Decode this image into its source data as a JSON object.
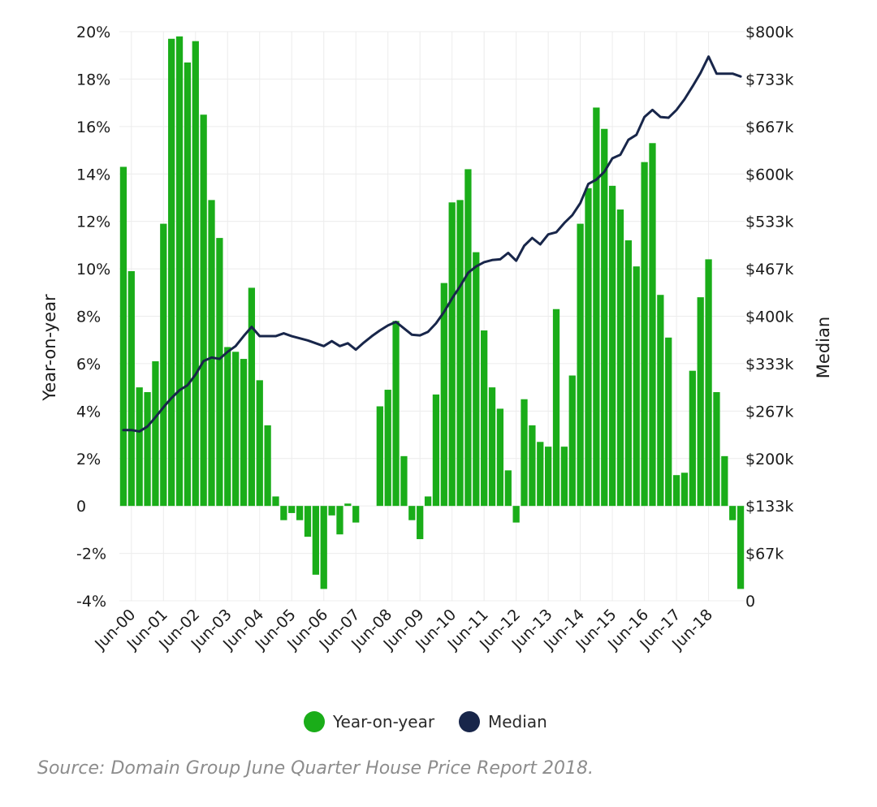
{
  "source_note": "Source: Domain Group June Quarter House Price Report 2018.",
  "colors": {
    "bars": "#1aad19",
    "median_line": "#18264a",
    "grid": "#ececec"
  },
  "chart_data": {
    "type": "bar",
    "ylabel_left": "Year-on-year",
    "ylabel_right": "Median",
    "ylim_left": [
      -4,
      20
    ],
    "ylim_right": [
      0,
      800000
    ],
    "left_ticks": [
      "-4%",
      "-2%",
      "0",
      "2%",
      "4%",
      "6%",
      "8%",
      "10%",
      "12%",
      "14%",
      "16%",
      "18%",
      "20%"
    ],
    "right_ticks": [
      "0",
      "$67k",
      "$133k",
      "$200k",
      "$267k",
      "$333k",
      "$400k",
      "$467k",
      "$533k",
      "$600k",
      "$667k",
      "$733k",
      "$800k"
    ],
    "x_tick_labels": [
      "Jun-00",
      "Jun-01",
      "Jun-02",
      "Jun-03",
      "Jun-04",
      "Jun-05",
      "Jun-06",
      "Jun-07",
      "Jun-08",
      "Jun-09",
      "Jun-10",
      "Jun-11",
      "Jun-12",
      "Jun-13",
      "Jun-14",
      "Jun-15",
      "Jun-16",
      "Jun-17",
      "Jun-18"
    ],
    "grid": true,
    "legend_position": "bottom",
    "series": [
      {
        "name": "Year-on-year",
        "type": "bar",
        "axis": "left",
        "values": [
          14.3,
          9.9,
          5,
          4.8,
          6.1,
          11.9,
          19.7,
          19.8,
          18.7,
          19.6,
          16.5,
          12.9,
          11.3,
          6.7,
          6.5,
          6.2,
          9.2,
          5.3,
          3.4,
          0.4,
          -0.6,
          -0.3,
          -0.6,
          -1.3,
          -2.9,
          -3.5,
          -0.4,
          -1.2,
          0.1,
          -0.7,
          0.0,
          0.0,
          4.2,
          4.9,
          7.8,
          2.1,
          -0.6,
          -1.4,
          0.4,
          4.7,
          9.4,
          12.8,
          12.9,
          14.2,
          10.7,
          7.4,
          5,
          4.1,
          1.5,
          -0.7,
          4.5,
          3.4,
          2.7,
          2.5,
          8.3,
          2.5,
          5.5,
          11.9,
          13.4,
          16.8,
          15.9,
          13.5,
          12.5,
          11.2,
          10.1,
          14.5,
          15.3,
          8.9,
          7.1,
          1.3,
          1.4,
          5.7,
          8.8,
          10.4,
          4.8,
          2.1,
          -0.6,
          -3.5
        ]
      },
      {
        "name": "Median",
        "type": "line",
        "axis": "right",
        "values": [
          240000,
          240000,
          238000,
          245000,
          258000,
          272000,
          285000,
          296000,
          303000,
          318000,
          337000,
          342000,
          340000,
          350000,
          358000,
          372000,
          385000,
          372000,
          372000,
          372000,
          376000,
          372000,
          369000,
          366000,
          362000,
          358000,
          365000,
          358000,
          362000,
          353000,
          363000,
          372000,
          380000,
          387000,
          392000,
          383000,
          374000,
          373000,
          378000,
          390000,
          406000,
          425000,
          442000,
          461000,
          470000,
          476000,
          479000,
          480000,
          489000,
          478000,
          499000,
          510000,
          501000,
          515000,
          518000,
          531000,
          542000,
          559000,
          586000,
          592000,
          603000,
          622000,
          627000,
          648000,
          655000,
          680000,
          690000,
          680000,
          679000,
          690000,
          705000,
          723000,
          742000,
          765000,
          741000,
          741000,
          741000,
          737000
        ]
      }
    ]
  }
}
